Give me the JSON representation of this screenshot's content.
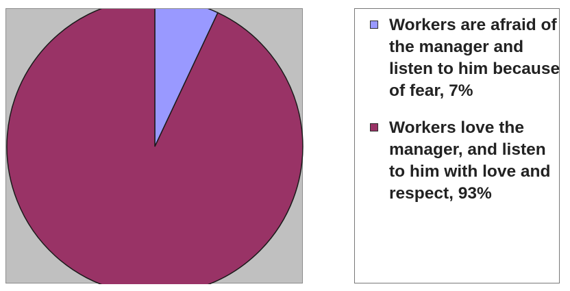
{
  "chart_data": {
    "type": "pie",
    "slices": [
      {
        "label": "Workers are afraid of the manager and listen to him because of fear, 7%",
        "value": 7,
        "color": "#9999ff"
      },
      {
        "label": "Workers love the manager, and listen to him with love and respect, 93%",
        "value": 93,
        "color": "#993366"
      }
    ],
    "title": "",
    "legend_position": "right",
    "plot_background": "#c0c0c0"
  }
}
